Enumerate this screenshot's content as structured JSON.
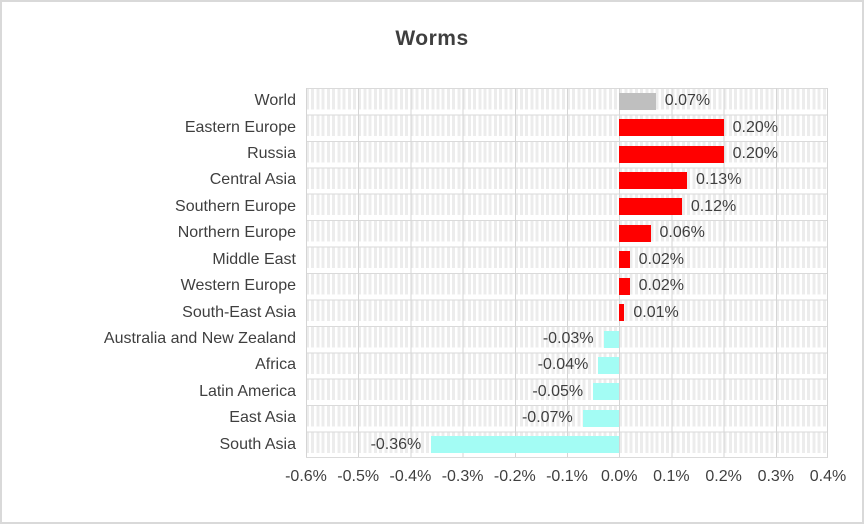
{
  "chart_data": {
    "type": "bar",
    "orientation": "horizontal",
    "title": "Worms",
    "categories": [
      "World",
      "Eastern Europe",
      "Russia",
      "Central Asia",
      "Southern Europe",
      "Northern Europe",
      "Middle East",
      "Western Europe",
      "South-East Asia",
      "Australia and New Zealand",
      "Africa",
      "Latin America",
      "East Asia",
      "South Asia"
    ],
    "values": [
      0.07,
      0.2,
      0.2,
      0.13,
      0.12,
      0.06,
      0.02,
      0.02,
      0.01,
      -0.03,
      -0.04,
      -0.05,
      -0.07,
      -0.36
    ],
    "value_labels": [
      "0.07%",
      "0.20%",
      "0.20%",
      "0.13%",
      "0.12%",
      "0.06%",
      "0.02%",
      "0.02%",
      "0.01%",
      "-0.03%",
      "-0.04%",
      "-0.05%",
      "-0.07%",
      "-0.36%"
    ],
    "bar_colors": [
      "#bfbfbf",
      "#ff0000",
      "#ff0000",
      "#ff0000",
      "#ff0000",
      "#ff0000",
      "#ff0000",
      "#ff0000",
      "#ff0000",
      "#a3fcf4",
      "#a3fcf4",
      "#a3fcf4",
      "#a3fcf4",
      "#a3fcf4"
    ],
    "xlim": [
      -0.6,
      0.4
    ],
    "x_tick_values": [
      -0.6,
      -0.5,
      -0.4,
      -0.3,
      -0.2,
      -0.1,
      0.0,
      0.1,
      0.2,
      0.3,
      0.4
    ],
    "x_tick_labels": [
      "-0.6%",
      "-0.5%",
      "-0.4%",
      "-0.3%",
      "-0.2%",
      "-0.1%",
      "0.0%",
      "0.1%",
      "0.2%",
      "0.3%",
      "0.4%"
    ],
    "grid": "on",
    "legend": "none",
    "colors": {
      "neutral_bar": "#bfbfbf",
      "positive_bar": "#ff0000",
      "negative_bar": "#a3fcf4",
      "text": "#3f3f3f",
      "grid_major": "#d5d5d5",
      "grid_minor": "#ececec",
      "frame_border": "#d9d9d9"
    }
  }
}
